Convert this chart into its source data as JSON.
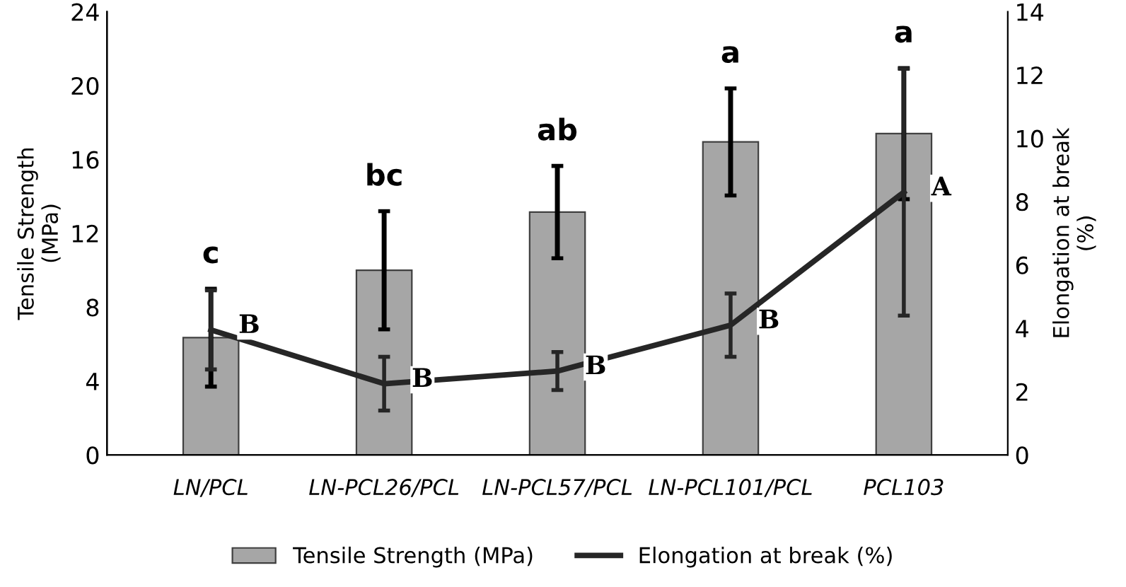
{
  "chart_data": {
    "type": "bar",
    "ylabel": "Tensile Strength\n(MPa)",
    "y2label": "Elongation at break\n(%)",
    "categories": [
      "LN/PCL",
      "LN-PCL26/PCL",
      "LN-PCL57/PCL",
      "LN-PCL101/PCL",
      "PCL103"
    ],
    "series": [
      {
        "name": "Tensile Strength (MPa)",
        "color": "#a6a6a6",
        "values": [
          6.35,
          10.0,
          13.15,
          16.95,
          17.4
        ],
        "errors": [
          2.65,
          3.2,
          2.5,
          2.9,
          3.55
        ]
      },
      {
        "name": "Elongation at break (%)",
        "type": "line",
        "axis": "y2",
        "color": "#262626",
        "values": [
          3.95,
          2.25,
          2.65,
          4.1,
          8.3
        ],
        "errors": [
          1.25,
          0.85,
          0.6,
          1.0,
          3.9
        ]
      }
    ],
    "ylim": [
      0,
      24
    ],
    "yticks": [
      0,
      4,
      8,
      12,
      16,
      20,
      24
    ],
    "y2lim": [
      0,
      14
    ],
    "y2ticks": [
      0,
      2,
      4,
      6,
      8,
      10,
      12,
      14
    ],
    "annotations": [
      "c",
      "bc",
      "ab",
      "a",
      "a",
      "B",
      "B",
      "B",
      "B",
      "A"
    ],
    "legend": "bottom",
    "grid": false
  }
}
